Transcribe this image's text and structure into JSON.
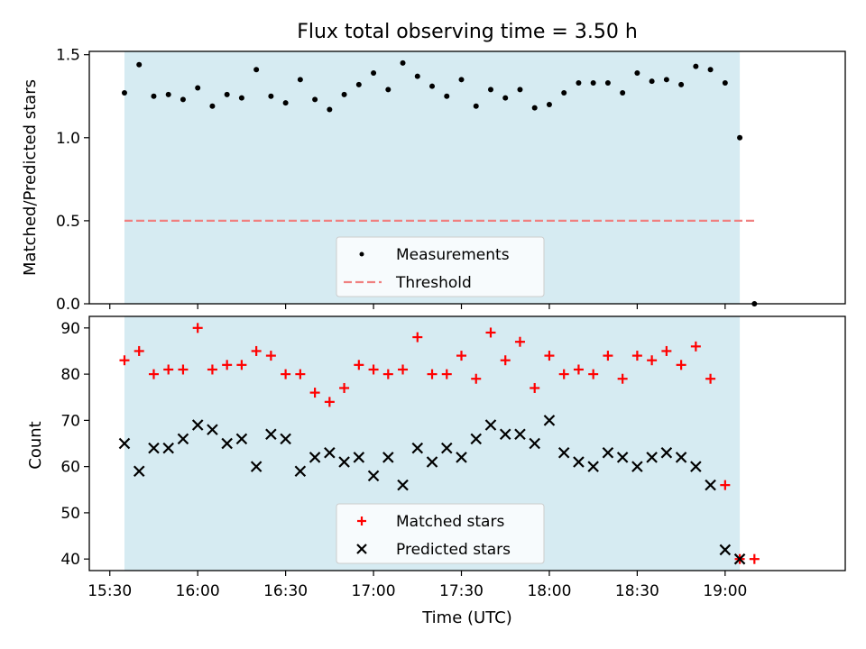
{
  "title": "Flux total observing time = 3.50 h",
  "colors": {
    "observing_span": "#add8e6",
    "measurements": "#000000",
    "threshold": "#f08080",
    "matched": "#ff0000",
    "predicted": "#000000"
  },
  "chart_data": [
    {
      "type": "scatter",
      "ylabel": "Matched/Predicted stars",
      "ylim": [
        0,
        1.52
      ],
      "xlim": [
        "15:23",
        "19:41"
      ],
      "yticks": [
        "0.0",
        "0.5",
        "1.0",
        "1.5"
      ],
      "shaded_span": [
        "15:35",
        "19:05"
      ],
      "legend": {
        "placement": "lower center",
        "entries": [
          "Measurements",
          "Threshold"
        ]
      },
      "threshold": {
        "name": "Threshold",
        "value": 0.5,
        "x_range": [
          "15:35",
          "19:10"
        ]
      },
      "series": [
        {
          "name": "Measurements",
          "x": [
            "15:35",
            "15:40",
            "15:45",
            "15:50",
            "15:55",
            "16:00",
            "16:05",
            "16:10",
            "16:15",
            "16:20",
            "16:25",
            "16:30",
            "16:35",
            "16:40",
            "16:45",
            "16:50",
            "16:55",
            "17:00",
            "17:05",
            "17:10",
            "17:15",
            "17:20",
            "17:25",
            "17:30",
            "17:35",
            "17:40",
            "17:45",
            "17:50",
            "17:55",
            "18:00",
            "18:05",
            "18:10",
            "18:15",
            "18:20",
            "18:25",
            "18:30",
            "18:35",
            "18:40",
            "18:45",
            "18:50",
            "18:55",
            "19:00",
            "19:05",
            "19:10"
          ],
          "values": [
            1.27,
            1.44,
            1.25,
            1.26,
            1.23,
            1.3,
            1.19,
            1.26,
            1.24,
            1.41,
            1.25,
            1.21,
            1.35,
            1.23,
            1.17,
            1.26,
            1.32,
            1.39,
            1.29,
            1.45,
            1.37,
            1.31,
            1.25,
            1.35,
            1.19,
            1.29,
            1.24,
            1.29,
            1.18,
            1.2,
            1.27,
            1.33,
            1.33,
            1.33,
            1.27,
            1.39,
            1.34,
            1.35,
            1.32,
            1.43,
            1.41,
            1.33,
            1.0,
            0.0
          ]
        }
      ]
    },
    {
      "type": "scatter",
      "xlabel": "Time (UTC)",
      "ylabel": "Count",
      "ylim": [
        37.5,
        92.5
      ],
      "xlim": [
        "15:23",
        "19:41"
      ],
      "yticks": [
        "40",
        "50",
        "60",
        "70",
        "80",
        "90"
      ],
      "xticks": [
        "15:30",
        "16:00",
        "16:30",
        "17:00",
        "17:30",
        "18:00",
        "18:30",
        "19:00"
      ],
      "shaded_span": [
        "15:35",
        "19:05"
      ],
      "legend": {
        "placement": "lower center",
        "entries": [
          "Matched stars",
          "Predicted stars"
        ]
      },
      "series": [
        {
          "name": "Matched stars",
          "marker": "plus",
          "x": [
            "15:35",
            "15:40",
            "15:45",
            "15:50",
            "15:55",
            "16:00",
            "16:05",
            "16:10",
            "16:15",
            "16:20",
            "16:25",
            "16:30",
            "16:35",
            "16:40",
            "16:45",
            "16:50",
            "16:55",
            "17:00",
            "17:05",
            "17:10",
            "17:15",
            "17:20",
            "17:25",
            "17:30",
            "17:35",
            "17:40",
            "17:45",
            "17:50",
            "17:55",
            "18:00",
            "18:05",
            "18:10",
            "18:15",
            "18:20",
            "18:25",
            "18:30",
            "18:35",
            "18:40",
            "18:45",
            "18:50",
            "18:55",
            "19:00",
            "19:05",
            "19:10"
          ],
          "values": [
            83,
            85,
            80,
            81,
            81,
            90,
            81,
            82,
            82,
            85,
            84,
            80,
            80,
            76,
            74,
            77,
            82,
            81,
            80,
            81,
            88,
            80,
            80,
            84,
            79,
            89,
            83,
            87,
            77,
            84,
            80,
            81,
            80,
            84,
            79,
            84,
            83,
            85,
            82,
            86,
            79,
            56,
            40,
            40
          ]
        },
        {
          "name": "Predicted stars",
          "marker": "x",
          "x": [
            "15:35",
            "15:40",
            "15:45",
            "15:50",
            "15:55",
            "16:00",
            "16:05",
            "16:10",
            "16:15",
            "16:20",
            "16:25",
            "16:30",
            "16:35",
            "16:40",
            "16:45",
            "16:50",
            "16:55",
            "17:00",
            "17:05",
            "17:10",
            "17:15",
            "17:20",
            "17:25",
            "17:30",
            "17:35",
            "17:40",
            "17:45",
            "17:50",
            "17:55",
            "18:00",
            "18:05",
            "18:10",
            "18:15",
            "18:20",
            "18:25",
            "18:30",
            "18:35",
            "18:40",
            "18:45",
            "18:50",
            "18:55",
            "19:00",
            "19:05"
          ],
          "values": [
            65,
            59,
            64,
            64,
            66,
            69,
            68,
            65,
            66,
            60,
            67,
            66,
            59,
            62,
            63,
            61,
            62,
            58,
            62,
            56,
            64,
            61,
            64,
            62,
            66,
            69,
            67,
            67,
            65,
            70,
            63,
            61,
            60,
            63,
            62,
            60,
            62,
            63,
            62,
            60,
            56,
            42,
            40
          ]
        }
      ]
    }
  ]
}
